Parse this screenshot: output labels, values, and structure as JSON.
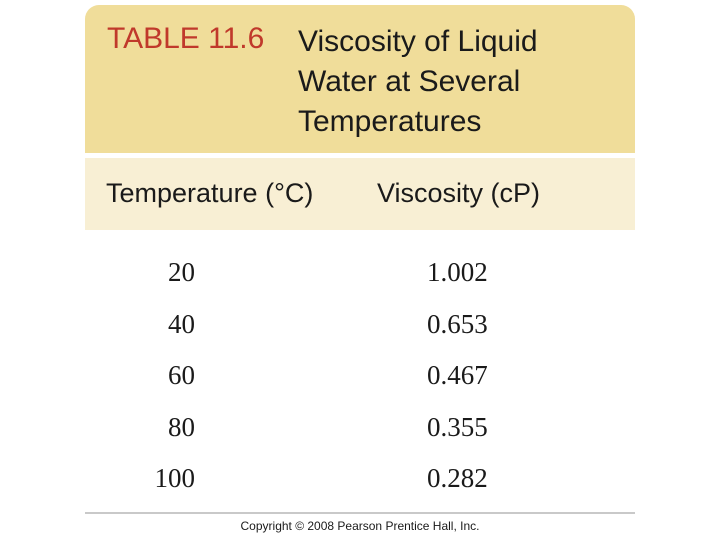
{
  "table": {
    "number": "TABLE 11.6",
    "title_lines": [
      "Viscosity of Liquid",
      "Water at Several",
      "Temperatures"
    ],
    "columns": [
      "Temperature (°C)",
      "Viscosity (cP)"
    ],
    "rows": [
      {
        "temperature": "20",
        "viscosity": "1.002"
      },
      {
        "temperature": "40",
        "viscosity": "0.653"
      },
      {
        "temperature": "60",
        "viscosity": "0.467"
      },
      {
        "temperature": "80",
        "viscosity": "0.355"
      },
      {
        "temperature": "100",
        "viscosity": "0.282"
      }
    ]
  },
  "footer": {
    "copyright": "Copyright © 2008 Pearson Prentice Hall, Inc."
  },
  "colors": {
    "header_background": "#f0dd9a",
    "column_header_background": "#f8efd4",
    "table_number": "#c0392b",
    "text": "#1a1a1a"
  }
}
